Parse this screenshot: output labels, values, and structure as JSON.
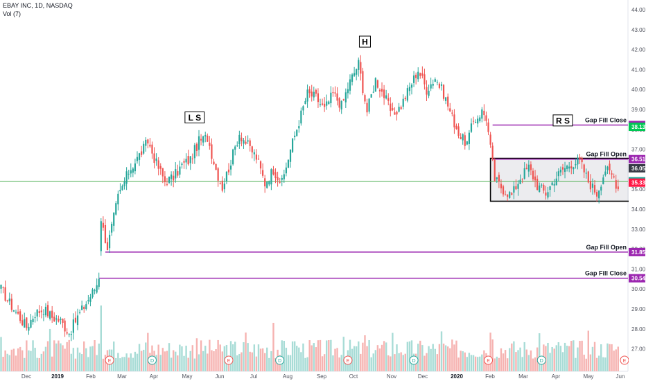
{
  "chart_data": {
    "type": "candlestick",
    "header": {
      "title": "EBAY INC, 1D, NASDAQ",
      "volume_label": "Vol (7)"
    },
    "y_axis": {
      "min": 26,
      "max": 44.5,
      "ticks": [
        "27.00",
        "28.00",
        "29.00",
        "30.00",
        "31.00",
        "32.00",
        "33.00",
        "34.00",
        "35.00",
        "36.00",
        "37.00",
        "38.00",
        "39.00",
        "40.00",
        "41.00",
        "42.00",
        "43.00",
        "44.00"
      ]
    },
    "x_axis": {
      "labels": [
        "Dec",
        "2019",
        "Feb",
        "Mar",
        "Apr",
        "May",
        "Jun",
        "Jul",
        "Aug",
        "Sep",
        "Oct",
        "Nov",
        "Dec",
        "2020",
        "Feb",
        "Mar",
        "Apr",
        "May",
        "Jun"
      ]
    },
    "anchors": [
      {
        "i": 0,
        "p": 30.0
      },
      {
        "i": 4,
        "p": 29.3
      },
      {
        "i": 8,
        "p": 28.7
      },
      {
        "i": 12,
        "p": 28.1
      },
      {
        "i": 16,
        "p": 28.8
      },
      {
        "i": 20,
        "p": 29.0
      },
      {
        "i": 24,
        "p": 28.6
      },
      {
        "i": 28,
        "p": 28.4
      },
      {
        "i": 32,
        "p": 27.8
      },
      {
        "i": 36,
        "p": 28.6
      },
      {
        "i": 40,
        "p": 29.3
      },
      {
        "i": 44,
        "p": 30.0
      },
      {
        "i": 46,
        "p": 30.5
      },
      {
        "i": 47,
        "p": 33.4
      },
      {
        "i": 50,
        "p": 32.1
      },
      {
        "i": 55,
        "p": 34.6
      },
      {
        "i": 60,
        "p": 35.9
      },
      {
        "i": 65,
        "p": 36.7
      },
      {
        "i": 69,
        "p": 37.4
      },
      {
        "i": 73,
        "p": 36.3
      },
      {
        "i": 77,
        "p": 35.4
      },
      {
        "i": 81,
        "p": 35.6
      },
      {
        "i": 85,
        "p": 36.2
      },
      {
        "i": 89,
        "p": 36.5
      },
      {
        "i": 93,
        "p": 37.4
      },
      {
        "i": 97,
        "p": 37.6
      },
      {
        "i": 101,
        "p": 36.0
      },
      {
        "i": 104,
        "p": 35.1
      },
      {
        "i": 108,
        "p": 36.4
      },
      {
        "i": 112,
        "p": 37.8
      },
      {
        "i": 116,
        "p": 37.2
      },
      {
        "i": 120,
        "p": 36.6
      },
      {
        "i": 124,
        "p": 35.3
      },
      {
        "i": 128,
        "p": 36.0
      },
      {
        "i": 132,
        "p": 35.3
      },
      {
        "i": 136,
        "p": 37.0
      },
      {
        "i": 140,
        "p": 38.4
      },
      {
        "i": 144,
        "p": 39.8
      },
      {
        "i": 148,
        "p": 39.6
      },
      {
        "i": 152,
        "p": 39.0
      },
      {
        "i": 156,
        "p": 39.8
      },
      {
        "i": 160,
        "p": 39.2
      },
      {
        "i": 164,
        "p": 40.4
      },
      {
        "i": 168,
        "p": 41.3
      },
      {
        "i": 172,
        "p": 38.9
      },
      {
        "i": 176,
        "p": 40.5
      },
      {
        "i": 180,
        "p": 39.7
      },
      {
        "i": 184,
        "p": 38.7
      },
      {
        "i": 188,
        "p": 39.2
      },
      {
        "i": 192,
        "p": 40.1
      },
      {
        "i": 196,
        "p": 41.0
      },
      {
        "i": 200,
        "p": 40.0
      },
      {
        "i": 204,
        "p": 40.6
      },
      {
        "i": 208,
        "p": 39.8
      },
      {
        "i": 212,
        "p": 38.6
      },
      {
        "i": 216,
        "p": 37.6
      },
      {
        "i": 219,
        "p": 37.3
      },
      {
        "i": 222,
        "p": 38.4
      },
      {
        "i": 226,
        "p": 38.9
      },
      {
        "i": 228,
        "p": 38.6
      },
      {
        "i": 232,
        "p": 35.5
      },
      {
        "i": 236,
        "p": 35.0
      },
      {
        "i": 240,
        "p": 34.7
      },
      {
        "i": 244,
        "p": 35.6
      },
      {
        "i": 248,
        "p": 36.1
      },
      {
        "i": 252,
        "p": 35.2
      },
      {
        "i": 256,
        "p": 34.8
      },
      {
        "i": 260,
        "p": 35.5
      },
      {
        "i": 264,
        "p": 36.0
      },
      {
        "i": 268,
        "p": 36.3
      },
      {
        "i": 272,
        "p": 36.4
      },
      {
        "i": 276,
        "p": 35.4
      },
      {
        "i": 280,
        "p": 34.8
      },
      {
        "i": 284,
        "p": 36.0
      },
      {
        "i": 288,
        "p": 35.6
      },
      {
        "i": 290,
        "p": 35.0
      }
    ],
    "horizontal_levels": [
      {
        "value": 38.22,
        "label": "38.22",
        "annotation": "Gap Fill Close",
        "color": "#9c27b0"
      },
      {
        "value": 36.51,
        "label": "36.51",
        "annotation": "Gap Fill Open",
        "color": "#9c27b0"
      },
      {
        "value": 31.85,
        "label": "31.85",
        "annotation": "Gap Fill Open",
        "color": "#9c27b0"
      },
      {
        "value": 30.54,
        "label": "30.54",
        "annotation": "Gap Fill Close",
        "color": "#9c27b0"
      }
    ],
    "price_badges": [
      {
        "value": 38.13,
        "label": "38.13",
        "color": "#00c853"
      },
      {
        "value": 36.05,
        "label": "36.05",
        "color": "#363a45"
      },
      {
        "value": 35.4,
        "label": "35.40",
        "color": "#26a69a"
      },
      {
        "value": 35.33,
        "label": "35.33",
        "color": "#ff1744"
      }
    ],
    "reference_line": {
      "value": 35.4,
      "color": "#4caf50"
    },
    "annotations": [
      {
        "text": "L S",
        "bar": 91,
        "value": 38.6
      },
      {
        "text": "H",
        "bar": 171,
        "value": 42.4
      },
      {
        "text": "R S",
        "bar": 264,
        "value": 38.45
      }
    ],
    "consolidation_box": {
      "from_bar": 230,
      "to_bar": 302,
      "top": 36.55,
      "bottom": 34.4
    },
    "position_tool": {
      "from_bar": 296,
      "to_bar": 344,
      "entry": 36.05,
      "target": 38.13,
      "stop": 35.33
    },
    "earnings_markers": [
      {
        "bar": 51,
        "label": "E"
      },
      {
        "bar": 71,
        "label": "D"
      },
      {
        "bar": 107,
        "label": "E"
      },
      {
        "bar": 131,
        "label": "D"
      },
      {
        "bar": 163,
        "label": "E"
      },
      {
        "bar": 194,
        "label": "D"
      },
      {
        "bar": 229,
        "label": "E"
      },
      {
        "bar": 254,
        "label": "D"
      },
      {
        "bar": 293,
        "label": "E"
      }
    ],
    "colors": {
      "up": "#26a69a",
      "down": "#ef5350",
      "vol_up": "#a8dcd6",
      "vol_down": "#f6b3b1",
      "level": "#9c27b0"
    }
  }
}
